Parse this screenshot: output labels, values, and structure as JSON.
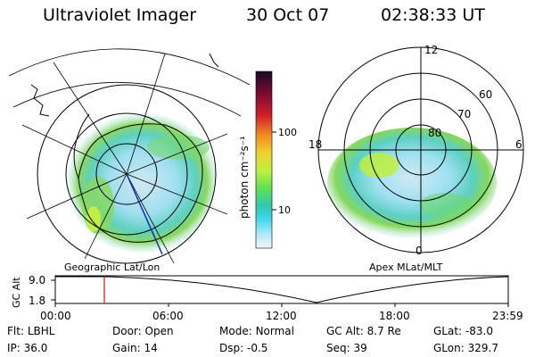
{
  "header": {
    "title": "Ultraviolet Imager",
    "date": "30 Oct 07",
    "time": "02:38:33 UT"
  },
  "left_map": {
    "caption": "Geographic Lat/Lon"
  },
  "right_map": {
    "caption": "Apex MLat/MLT",
    "mlt_labels": {
      "top": "12",
      "left": "18",
      "right": "6",
      "bottom": "0"
    },
    "lat_labels": [
      "80",
      "70",
      "60"
    ]
  },
  "colorbar": {
    "label": "photon cm⁻²s⁻¹",
    "ticks": [
      "100",
      "10"
    ],
    "colors": [
      "#1a0a2a",
      "#3b0a3a",
      "#7a0830",
      "#c0102a",
      "#e8402a",
      "#f08a20",
      "#f0c830",
      "#e8f040",
      "#b0f040",
      "#70e850",
      "#40d880",
      "#30c8c8",
      "#50d8f0",
      "#a0e8f8",
      "#d8f0f8",
      "#f2f6f8"
    ]
  },
  "altitude_plot": {
    "ylabel": "GC Alt",
    "yticks": [
      "9.0",
      "1.8"
    ],
    "xticks": [
      "00:00",
      "06:00",
      "12:00",
      "18:00",
      "23:59"
    ],
    "marker_time": "02:38"
  },
  "info": {
    "row1": [
      {
        "key": "Flt:",
        "value": "LBHL"
      },
      {
        "key": "Door:",
        "value": "Open"
      },
      {
        "key": "Mode:",
        "value": "Normal"
      },
      {
        "key": "GC Alt:",
        "value": "8.7 Re"
      },
      {
        "key": "GLat:",
        "value": "-83.0"
      }
    ],
    "row2": [
      {
        "key": "IP:",
        "value": "36.0"
      },
      {
        "key": "Gain:",
        "value": "14"
      },
      {
        "key": "Dsp:",
        "value": "-0.5"
      },
      {
        "key": "Seq:",
        "value": "39"
      },
      {
        "key": "GLon:",
        "value": "329.7"
      }
    ]
  }
}
